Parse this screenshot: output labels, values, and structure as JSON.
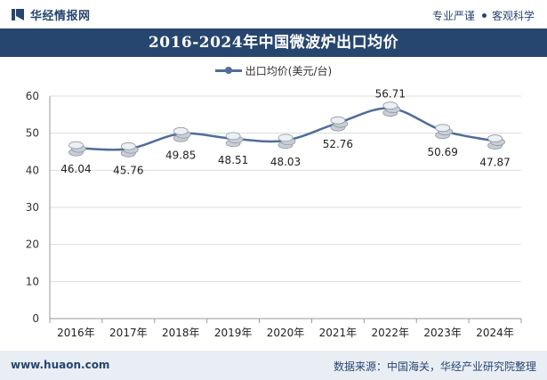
{
  "header": {
    "brand_name": "华经情报网",
    "slogan_left": "专业严谨",
    "slogan_right": "客观科学"
  },
  "chart_data": {
    "type": "line",
    "title": "2016-2024年中国微波炉出口均价",
    "categories": [
      "2016年",
      "2017年",
      "2018年",
      "2019年",
      "2020年",
      "2021年",
      "2022年",
      "2023年",
      "2024年"
    ],
    "series": [
      {
        "name": "出口均价(美元/台)",
        "values": [
          46.04,
          45.76,
          49.85,
          48.51,
          48.03,
          52.76,
          56.71,
          50.69,
          47.87
        ]
      }
    ],
    "data_labels": [
      "46.04",
      "45.76",
      "49.85",
      "48.51",
      "48.03",
      "52.76",
      "56.71",
      "50.69",
      "47.87"
    ],
    "ylim": [
      0,
      60
    ],
    "yticks": [
      0,
      10,
      20,
      30,
      40,
      50,
      60
    ],
    "ytick_labels": [
      "0",
      "10",
      "20",
      "30",
      "40",
      "50",
      "60"
    ],
    "grid": true,
    "legend_position": "top",
    "line_color": "#506d9a"
  },
  "footer": {
    "url": "www.huaon.com",
    "source": "数据来源：中国海关，华经产业研究院整理"
  },
  "colors": {
    "header_band": "#27466f",
    "footer_band": "#e9eef5"
  }
}
